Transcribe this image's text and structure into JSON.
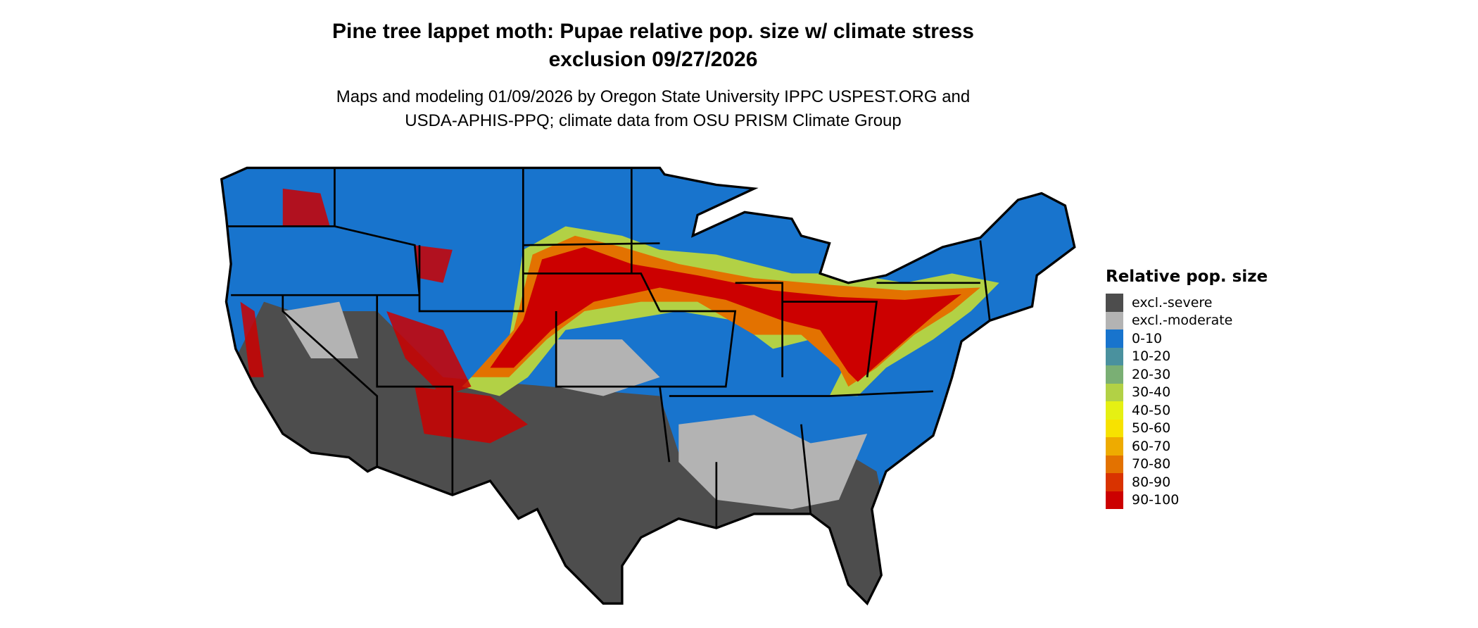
{
  "title_line1": "Pine tree lappet moth: Pupae relative pop. size w/ climate stress",
  "title_line2": "exclusion 09/27/2026",
  "subtitle_line1": "Maps and modeling 01/09/2026 by Oregon State University IPPC USPEST.ORG and",
  "subtitle_line2": "USDA-APHIS-PPQ; climate data from OSU PRISM Climate Group",
  "chart_data": {
    "type": "map",
    "region": "Contiguous United States",
    "legend_title": "Relative pop. size",
    "legend_position": "right",
    "legend": [
      {
        "label": "excl.-severe",
        "color": "#4d4d4d"
      },
      {
        "label": "excl.-moderate",
        "color": "#b3b3b3"
      },
      {
        "label": "0-10",
        "color": "#1874cd"
      },
      {
        "label": "10-20",
        "color": "#4a919e"
      },
      {
        "label": "20-30",
        "color": "#7aaf74"
      },
      {
        "label": "30-40",
        "color": "#b2d145"
      },
      {
        "label": "40-50",
        "color": "#e5f013"
      },
      {
        "label": "50-60",
        "color": "#f7e200"
      },
      {
        "label": "60-70",
        "color": "#eeab00"
      },
      {
        "label": "70-80",
        "color": "#e37200"
      },
      {
        "label": "80-90",
        "color": "#d93300"
      },
      {
        "label": "90-100",
        "color": "#cc0000"
      }
    ]
  }
}
